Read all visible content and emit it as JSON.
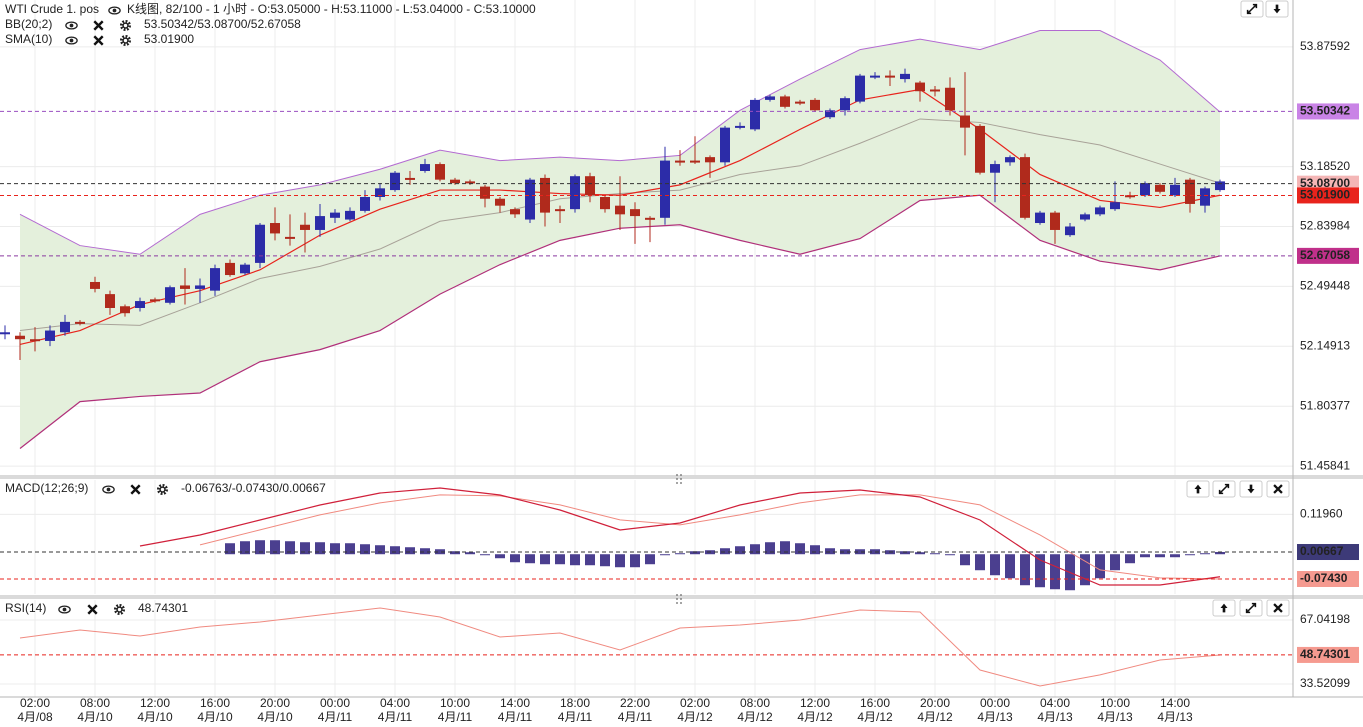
{
  "chart_data": [
    {
      "type": "candlestick",
      "title": "WTI Crude 1. pos",
      "subtitle": "K线图, 82/100 - 1 小时 - O:53.05000 - H:53.11000 - L:53.04000 - C:53.10000",
      "categories": [
        null,
        null,
        "02:00",
        null,
        null,
        null,
        "08:00",
        null,
        null,
        null,
        "12:00",
        null,
        null,
        null,
        "16:00",
        null,
        null,
        null,
        "20:00",
        null,
        null,
        null,
        "00:00",
        null,
        null,
        null,
        "04:00",
        null,
        null,
        null,
        "10:00",
        null,
        null,
        null,
        "14:00",
        null,
        null,
        null,
        "18:00",
        null,
        null,
        null,
        "22:00",
        null,
        null,
        null,
        "02:00",
        null,
        null,
        null,
        "08:00",
        null,
        null,
        null,
        "12:00",
        null,
        null,
        null,
        "16:00",
        null,
        null,
        null,
        "20:00",
        null,
        null,
        null,
        "00:00",
        null,
        null,
        null,
        "04:00",
        null,
        null,
        null,
        "10:00",
        null,
        null,
        null,
        "14:00",
        null,
        null,
        null
      ],
      "dates": [
        null,
        null,
        "4月/08",
        null,
        null,
        null,
        "4月/10",
        null,
        null,
        null,
        "4月/10",
        null,
        null,
        null,
        "4月/10",
        null,
        null,
        null,
        "4月/10",
        null,
        null,
        null,
        "4月/11",
        null,
        null,
        null,
        "4月/11",
        null,
        null,
        null,
        "4月/11",
        null,
        null,
        null,
        "4月/11",
        null,
        null,
        null,
        "4月/11",
        null,
        null,
        null,
        "4月/11",
        null,
        null,
        null,
        "4月/12",
        null,
        null,
        null,
        "4月/12",
        null,
        null,
        null,
        "4月/12",
        null,
        null,
        null,
        "4月/12",
        null,
        null,
        null,
        "4月/12",
        null,
        null,
        null,
        "4月/13",
        null,
        null,
        null,
        "4月/13",
        null,
        null,
        null,
        "4月/13",
        null,
        null,
        null,
        "4月/13",
        null,
        null,
        null
      ],
      "open": [
        52.22,
        52.21,
        52.19,
        52.18,
        52.23,
        52.29,
        52.52,
        52.45,
        52.38,
        52.37,
        52.42,
        52.4,
        52.5,
        52.48,
        52.47,
        52.63,
        52.57,
        52.63,
        52.86,
        52.78,
        52.85,
        52.82,
        52.89,
        52.88,
        52.93,
        53.01,
        53.05,
        53.12,
        53.16,
        53.2,
        53.11,
        53.1,
        53.07,
        53.0,
        52.94,
        52.88,
        53.12,
        52.94,
        52.94,
        53.13,
        53.01,
        52.96,
        52.94,
        52.89,
        52.89,
        53.22,
        53.22,
        53.24,
        53.21,
        53.41,
        53.4,
        53.57,
        53.59,
        53.56,
        53.57,
        53.47,
        53.51,
        53.56,
        53.7,
        53.71,
        53.69,
        53.67,
        53.63,
        53.64,
        53.48,
        53.42,
        53.15,
        53.21,
        53.24,
        52.86,
        52.92,
        52.79,
        52.88,
        52.91,
        52.94,
        53.02,
        53.02,
        53.08,
        53.02,
        53.11,
        52.96,
        53.05
      ],
      "high": [
        52.27,
        52.23,
        52.26,
        52.27,
        52.33,
        52.3,
        52.55,
        52.47,
        52.39,
        52.43,
        52.43,
        52.5,
        52.6,
        52.54,
        52.62,
        52.65,
        52.63,
        52.86,
        52.95,
        52.91,
        52.92,
        52.97,
        52.94,
        52.95,
        53.05,
        53.09,
        53.16,
        53.16,
        53.23,
        53.21,
        53.12,
        53.11,
        53.08,
        53.01,
        52.95,
        53.12,
        53.14,
        52.96,
        53.14,
        53.15,
        53.02,
        53.13,
        52.98,
        52.9,
        53.3,
        53.28,
        53.36,
        53.25,
        53.42,
        53.44,
        53.58,
        53.6,
        53.6,
        53.57,
        53.58,
        53.52,
        53.59,
        53.72,
        53.73,
        53.74,
        53.75,
        53.68,
        53.65,
        53.7,
        53.73,
        53.43,
        53.22,
        53.25,
        53.26,
        52.93,
        52.93,
        52.86,
        52.92,
        52.96,
        53.1,
        53.04,
        53.1,
        53.09,
        53.12,
        53.12,
        53.07,
        53.11
      ],
      "low": [
        52.19,
        52.07,
        52.12,
        52.15,
        52.21,
        52.27,
        52.46,
        52.33,
        52.32,
        52.35,
        52.4,
        52.39,
        52.39,
        52.4,
        52.44,
        52.55,
        52.56,
        52.6,
        52.76,
        52.73,
        52.69,
        52.78,
        52.86,
        52.87,
        52.92,
        52.99,
        53.04,
        53.08,
        53.15,
        53.1,
        53.08,
        53.08,
        52.95,
        52.92,
        52.89,
        52.86,
        52.84,
        52.86,
        52.92,
        52.98,
        52.92,
        52.82,
        52.74,
        52.75,
        52.85,
        53.19,
        53.2,
        53.12,
        53.19,
        53.4,
        53.39,
        53.56,
        53.52,
        53.54,
        53.5,
        53.46,
        53.48,
        53.55,
        53.69,
        53.65,
        53.67,
        53.56,
        53.59,
        53.48,
        53.25,
        53.14,
        52.98,
        53.19,
        52.88,
        52.85,
        52.74,
        52.78,
        52.87,
        52.9,
        52.93,
        53.0,
        53.01,
        53.03,
        53.01,
        52.92,
        52.92,
        53.04
      ],
      "close": [
        52.23,
        52.19,
        52.18,
        52.24,
        52.29,
        52.28,
        52.48,
        52.37,
        52.34,
        52.41,
        52.41,
        52.49,
        52.48,
        52.5,
        52.6,
        52.56,
        52.62,
        52.85,
        52.8,
        52.77,
        52.82,
        52.9,
        52.92,
        52.93,
        53.01,
        53.06,
        53.15,
        53.11,
        53.2,
        53.11,
        53.09,
        53.09,
        53.0,
        52.96,
        52.91,
        53.11,
        52.92,
        52.93,
        53.13,
        53.02,
        52.94,
        52.91,
        52.9,
        52.88,
        53.22,
        53.21,
        53.21,
        53.21,
        53.41,
        53.42,
        53.57,
        53.59,
        53.53,
        53.55,
        53.51,
        53.51,
        53.58,
        53.71,
        53.71,
        53.7,
        53.72,
        53.62,
        53.62,
        53.51,
        53.41,
        53.15,
        53.2,
        53.24,
        52.89,
        52.92,
        52.82,
        52.84,
        52.91,
        52.95,
        52.98,
        53.01,
        53.09,
        53.04,
        53.08,
        52.97,
        53.06,
        53.1
      ],
      "up_color": "#2c2ca8",
      "down_color": "#b02a1c",
      "ylim": [
        51.407,
        54.146
      ],
      "yticks": [
        53.87592,
        {
          "value": 53.1852,
          "label": "53.18520"
        },
        52.83984,
        52.49448,
        52.14913,
        51.80377,
        51.45841
      ],
      "grid": true,
      "bollinger": {
        "name": "BB(20;2)",
        "legend_values": "53.50342/53.08700/52.67058",
        "x": [
          1,
          5,
          9,
          13,
          17,
          21,
          25,
          29,
          33,
          37,
          41,
          45,
          49,
          53,
          57,
          61,
          65,
          69,
          73,
          77,
          81
        ],
        "upper": [
          52.91,
          52.73,
          52.68,
          52.91,
          53.02,
          53.08,
          53.17,
          53.28,
          53.22,
          53.24,
          53.22,
          53.25,
          53.51,
          53.69,
          53.86,
          53.92,
          53.86,
          53.97,
          53.97,
          53.8,
          53.5
        ],
        "middle": [
          52.24,
          52.28,
          52.27,
          52.4,
          52.54,
          52.61,
          52.71,
          52.87,
          52.92,
          53.0,
          53.03,
          53.05,
          53.14,
          53.19,
          53.32,
          53.46,
          53.44,
          53.37,
          53.31,
          53.2,
          53.09
        ],
        "lower": [
          51.56,
          51.83,
          51.86,
          51.88,
          52.06,
          52.13,
          52.24,
          52.45,
          52.62,
          52.76,
          52.83,
          52.85,
          52.76,
          52.68,
          52.77,
          52.99,
          53.02,
          52.76,
          52.64,
          52.59,
          52.67
        ],
        "color": "#b36ad1",
        "middle_color": "#a8a298",
        "fill": "#e4f0dc",
        "legend_color": "#c070c0"
      },
      "sma": {
        "name": "SMA(10)",
        "legend_value": "53.01900",
        "x": [
          1,
          5,
          9,
          13,
          17,
          21,
          25,
          29,
          33,
          37,
          41,
          45,
          49,
          53,
          57,
          61,
          65,
          69,
          73,
          77,
          81
        ],
        "values": [
          52.16,
          52.24,
          52.39,
          52.47,
          52.59,
          52.79,
          52.94,
          53.05,
          53.05,
          53.03,
          53.02,
          53.08,
          53.22,
          53.4,
          53.57,
          53.63,
          53.4,
          53.14,
          52.99,
          52.95,
          53.02
        ],
        "color": "#e8231c"
      },
      "markers": [
        {
          "value": 53.50342,
          "label": "53.50342",
          "color": "#c983e6",
          "text_color": "#ffffff",
          "line": "#9a4fc0"
        },
        {
          "value": 53.087,
          "label": "53.08700",
          "color": "#f4b6b6",
          "text_color": "#b02a1c",
          "line": "#333333"
        },
        {
          "value": 53.019,
          "label": "53.01900",
          "color": "#e8231c",
          "text_color": "#ffffff",
          "line": "#e8231c"
        },
        {
          "value": 52.67058,
          "label": "52.67058",
          "color": "#c0308a",
          "text_color": "#ffffff",
          "line": "#8a3aa0"
        }
      ]
    },
    {
      "type": "macd",
      "title": "MACD(12;26;9)",
      "legend_values": "-0.06763/-0.07430/0.00667",
      "legend_color": "#d0203a",
      "ylim": [
        -0.1193,
        0.2227
      ],
      "yticks": [
        {
          "value": 0.1196,
          "label": "0.11960"
        }
      ],
      "x": [
        1,
        5,
        9,
        13,
        17,
        21,
        25,
        29,
        33,
        37,
        41,
        45,
        49,
        53,
        57,
        61,
        65,
        69,
        73,
        77,
        81
      ],
      "macd": [
        null,
        null,
        0.0247,
        0.0577,
        0.1027,
        0.1477,
        0.1837,
        0.1987,
        0.1777,
        0.1327,
        0.0727,
        0.0937,
        0.1477,
        0.1837,
        0.1927,
        0.1717,
        0.1027,
        -0.0173,
        -0.0923,
        -0.0923,
        -0.06763
      ],
      "signal": [
        null,
        null,
        null,
        0.028,
        0.073,
        0.118,
        0.154,
        0.178,
        0.175,
        0.148,
        0.103,
        0.088,
        0.118,
        0.154,
        0.178,
        0.178,
        0.148,
        0.058,
        -0.047,
        -0.071,
        -0.0743
      ],
      "histogram": [
        null,
        null,
        null,
        null,
        null,
        null,
        null,
        null,
        null,
        null,
        null,
        null,
        null,
        null,
        null,
        0.033,
        0.039,
        0.042,
        0.042,
        0.039,
        0.036,
        0.036,
        0.033,
        0.033,
        0.03,
        0.027,
        0.024,
        0.021,
        0.018,
        0.015,
        0.009,
        0.006,
        -0.003,
        -0.012,
        -0.024,
        -0.027,
        -0.03,
        -0.03,
        -0.033,
        -0.033,
        -0.036,
        -0.039,
        -0.039,
        -0.03,
        -0.003,
        0.003,
        0.009,
        0.012,
        0.018,
        0.024,
        0.03,
        0.036,
        0.039,
        0.033,
        0.027,
        0.018,
        0.015,
        0.015,
        0.015,
        0.012,
        0.009,
        0.006,
        0.003,
        -0.003,
        -0.033,
        -0.048,
        -0.063,
        -0.072,
        -0.093,
        -0.099,
        -0.105,
        -0.108,
        -0.093,
        -0.072,
        -0.048,
        -0.027,
        -0.009,
        -0.009,
        -0.009,
        -0.003,
        0.003,
        0.00667
      ],
      "macd_color": "#d0203a",
      "signal_color": "#f08a80",
      "hist_color": "#4b3f8f",
      "markers": [
        {
          "value": 0.00667,
          "label": "0.00667",
          "color": "#3d3a78",
          "text_color": "#ffffff",
          "line": "#333333"
        },
        {
          "value": -0.0743,
          "label": "-0.07430",
          "color": "#f59a90",
          "text_color": "#ffffff",
          "line": "#e8231c"
        }
      ]
    },
    {
      "type": "line",
      "title": "RSI(14)",
      "legend_value": "48.74301",
      "legend_color": "#f08a80",
      "ylim": [
        26.71,
        77.52
      ],
      "yticks": [
        67.04198,
        33.52099
      ],
      "x": [
        1,
        5,
        9,
        13,
        17,
        21,
        25,
        29,
        33,
        37,
        41,
        45,
        49,
        53,
        57,
        61,
        65,
        69,
        73,
        77,
        81
      ],
      "values": [
        57.61,
        61.8,
        58.66,
        63.37,
        65.99,
        69.66,
        73.33,
        68.61,
        58.14,
        60.23,
        51.33,
        62.85,
        64.42,
        67.04,
        72.28,
        71.23,
        40.85,
        32.47,
        38.28,
        46.09,
        48.74
      ],
      "color": "#f08a80",
      "markers": [
        {
          "value": 48.74301,
          "label": "48.74301",
          "color": "#f59a90",
          "text_color": "#ffffff",
          "line": "#e8231c"
        }
      ]
    }
  ]
}
